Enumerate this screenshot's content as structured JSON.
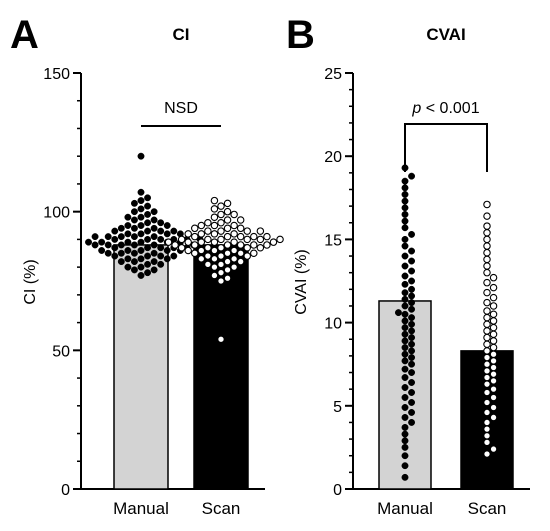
{
  "panels": [
    "A",
    "B"
  ],
  "chart_data": [
    {
      "type": "bar",
      "panel": "A",
      "title": "CI",
      "xlabel": "",
      "ylabel": "CI (%)",
      "ylim": [
        0,
        150
      ],
      "yticks": [
        0,
        50,
        100,
        150
      ],
      "categories": [
        "Manual",
        "Scan"
      ],
      "bar_colors": [
        "#d3d3d3",
        "#000000"
      ],
      "point_styles": [
        "filled",
        "open"
      ],
      "values": [
        88,
        88
      ],
      "points": [
        [
          120,
          107,
          105,
          104,
          103,
          102,
          101,
          100,
          100,
          99,
          98,
          98,
          97,
          97,
          96,
          96,
          95,
          95,
          95,
          94,
          94,
          94,
          93,
          93,
          93,
          93,
          92,
          92,
          92,
          92,
          91,
          91,
          91,
          91,
          91,
          90,
          90,
          90,
          90,
          90,
          90,
          89,
          89,
          89,
          89,
          89,
          89,
          88,
          88,
          88,
          88,
          88,
          88,
          87,
          87,
          87,
          87,
          87,
          86,
          86,
          86,
          86,
          86,
          85,
          85,
          85,
          85,
          84,
          84,
          84,
          84,
          83,
          83,
          83,
          82,
          82,
          82,
          81,
          81,
          80,
          80,
          79,
          79,
          78,
          77
        ],
        [
          104,
          103,
          102,
          101,
          100,
          99,
          99,
          98,
          97,
          97,
          96,
          96,
          95,
          95,
          95,
          94,
          94,
          94,
          93,
          93,
          93,
          93,
          92,
          92,
          92,
          92,
          91,
          91,
          91,
          91,
          91,
          90,
          90,
          90,
          90,
          90,
          90,
          89,
          89,
          89,
          89,
          89,
          89,
          88,
          88,
          88,
          88,
          88,
          88,
          87,
          87,
          87,
          87,
          87,
          86,
          86,
          86,
          86,
          85,
          85,
          85,
          85,
          84,
          84,
          84,
          83,
          83,
          83,
          82,
          82,
          81,
          81,
          80,
          80,
          79,
          78,
          77,
          76,
          75,
          54
        ]
      ],
      "annotation": {
        "text": "NSD",
        "bracket": true
      }
    },
    {
      "type": "bar",
      "panel": "B",
      "title": "CVAI",
      "xlabel": "",
      "ylabel": "CVAI (%)",
      "ylim": [
        0,
        25
      ],
      "yticks": [
        0,
        5,
        10,
        15,
        20,
        25
      ],
      "categories": [
        "Manual",
        "Scan"
      ],
      "bar_colors": [
        "#d3d3d3",
        "#000000"
      ],
      "point_styles": [
        "filled",
        "open"
      ],
      "values": [
        11.3,
        8.3
      ],
      "points": [
        [
          19.3,
          18.8,
          18.5,
          18.1,
          17.7,
          17.3,
          16.9,
          16.5,
          16.1,
          15.7,
          15.3,
          15.0,
          14.6,
          14.3,
          14.0,
          13.7,
          13.4,
          13.1,
          12.8,
          12.5,
          12.3,
          12.0,
          11.8,
          11.6,
          11.4,
          11.2,
          11.0,
          10.8,
          10.6,
          10.5,
          10.3,
          10.1,
          9.9,
          9.7,
          9.5,
          9.3,
          9.1,
          8.9,
          8.7,
          8.5,
          8.3,
          8.1,
          7.9,
          7.7,
          7.5,
          7.2,
          7.0,
          6.7,
          6.4,
          6.1,
          5.8,
          5.5,
          5.2,
          4.9,
          4.6,
          4.3,
          4.0,
          3.7,
          3.3,
          2.9,
          2.5,
          2.0,
          1.4,
          0.7
        ],
        [
          17.1,
          16.4,
          15.8,
          15.4,
          15.0,
          14.6,
          14.2,
          13.8,
          13.4,
          13.0,
          12.7,
          12.4,
          12.1,
          11.8,
          11.5,
          11.2,
          11.0,
          10.7,
          10.5,
          10.3,
          10.1,
          9.9,
          9.7,
          9.5,
          9.3,
          9.1,
          8.9,
          8.7,
          8.5,
          8.3,
          8.1,
          7.9,
          7.7,
          7.5,
          7.3,
          7.1,
          6.9,
          6.7,
          6.5,
          6.3,
          6.0,
          5.8,
          5.5,
          5.2,
          4.9,
          4.6,
          4.3,
          4.0,
          3.6,
          3.2,
          2.8,
          2.4,
          2.1
        ]
      ],
      "annotation": {
        "text_italic": "p",
        "text_rest": " < 0.001",
        "bracket": true
      }
    }
  ]
}
